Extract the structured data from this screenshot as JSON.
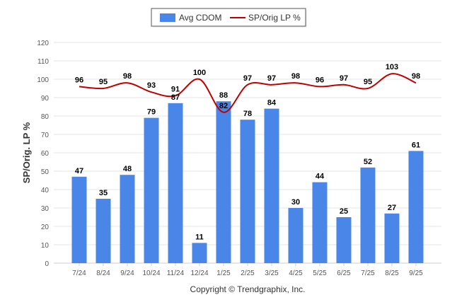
{
  "chart_data": {
    "type": "bar",
    "categories": [
      "7/24",
      "8/24",
      "9/24",
      "10/24",
      "11/24",
      "12/24",
      "1/25",
      "2/25",
      "3/25",
      "4/25",
      "5/25",
      "6/25",
      "7/25",
      "8/25",
      "9/25"
    ],
    "series": [
      {
        "name": "Avg CDOM",
        "type": "bar",
        "color": "#4a86e8",
        "values": [
          47,
          35,
          48,
          79,
          87,
          11,
          88,
          78,
          84,
          30,
          44,
          25,
          52,
          27,
          61
        ]
      },
      {
        "name": "SP/Orig LP %",
        "type": "line",
        "color": "#c00000",
        "values": [
          96,
          95,
          98,
          93,
          91,
          100,
          82,
          97,
          97,
          98,
          96,
          97,
          95,
          103,
          98
        ]
      }
    ],
    "ylabel": "SP/Orig. LP %",
    "ylim": [
      0,
      120
    ],
    "yticks": [
      0,
      10,
      20,
      30,
      40,
      50,
      60,
      70,
      80,
      90,
      100,
      110,
      120
    ],
    "grid": true,
    "legend": "top-center",
    "footer": "Copyright © Trendgraphix, Inc."
  }
}
